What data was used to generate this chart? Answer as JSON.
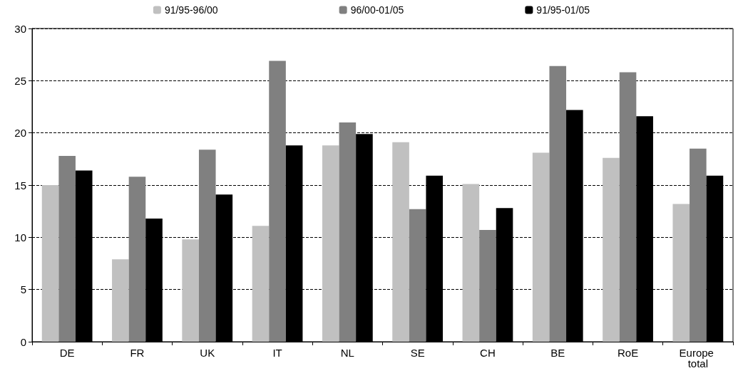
{
  "chart_data": {
    "type": "bar",
    "categories": [
      "DE",
      "FR",
      "UK",
      "IT",
      "NL",
      "SE",
      "CH",
      "BE",
      "RoE",
      "Europe total"
    ],
    "series": [
      {
        "name": "91/95-96/00",
        "color": "#c0c0c0",
        "values": [
          15.0,
          7.9,
          9.8,
          11.1,
          18.8,
          19.1,
          15.1,
          18.1,
          17.6,
          13.2
        ]
      },
      {
        "name": "96/00-01/05",
        "color": "#808080",
        "values": [
          17.8,
          15.8,
          18.4,
          26.9,
          21.0,
          12.7,
          10.7,
          26.4,
          25.8,
          18.5
        ]
      },
      {
        "name": "91/95-01/05",
        "color": "#000000",
        "values": [
          16.4,
          11.8,
          14.1,
          18.8,
          19.9,
          15.9,
          12.8,
          22.2,
          21.6,
          15.9
        ]
      }
    ],
    "ylim": [
      0,
      30
    ],
    "yticks": [
      0,
      5,
      10,
      15,
      20,
      25,
      30
    ],
    "grid": "y",
    "legend": "top"
  }
}
